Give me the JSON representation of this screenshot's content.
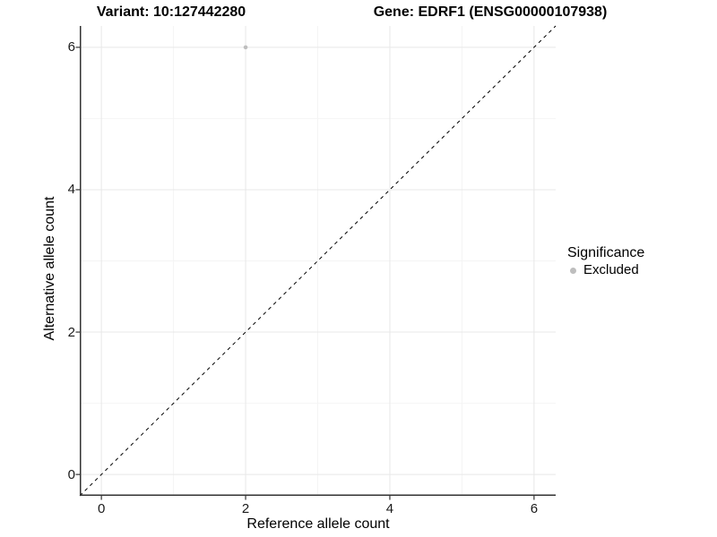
{
  "titles": {
    "variant": "Variant: 10:127442280",
    "gene": "Gene: EDRF1 (ENSG00000107938)"
  },
  "chart_data": {
    "type": "scatter",
    "xlabel": "Reference allele count",
    "ylabel": "Alternative allele count",
    "xlim": [
      -0.3,
      6.3
    ],
    "ylim": [
      -0.3,
      6.3
    ],
    "xticks": [
      0,
      2,
      4,
      6
    ],
    "yticks": [
      0,
      2,
      4,
      6
    ],
    "minor_xticks": [
      1,
      3,
      5
    ],
    "minor_yticks": [
      1,
      3,
      5
    ],
    "grid": true,
    "points": [
      {
        "x": 2,
        "y": 6,
        "series": "Excluded"
      }
    ],
    "reference_line": {
      "slope": 1,
      "intercept": 0,
      "style": "dashed"
    },
    "legend": {
      "title": "Significance",
      "position": "right",
      "entries": [
        {
          "label": "Excluded",
          "color": "#bebebe"
        }
      ]
    }
  },
  "colors": {
    "background": "#ffffff",
    "axis": "#333333",
    "tick_mark": "#333333",
    "tick_text": "#1a1a1a",
    "grid_major": "#e8e8e8",
    "grid_minor": "#f4f4f4",
    "reference_line": "#000000",
    "text": "#000000"
  }
}
